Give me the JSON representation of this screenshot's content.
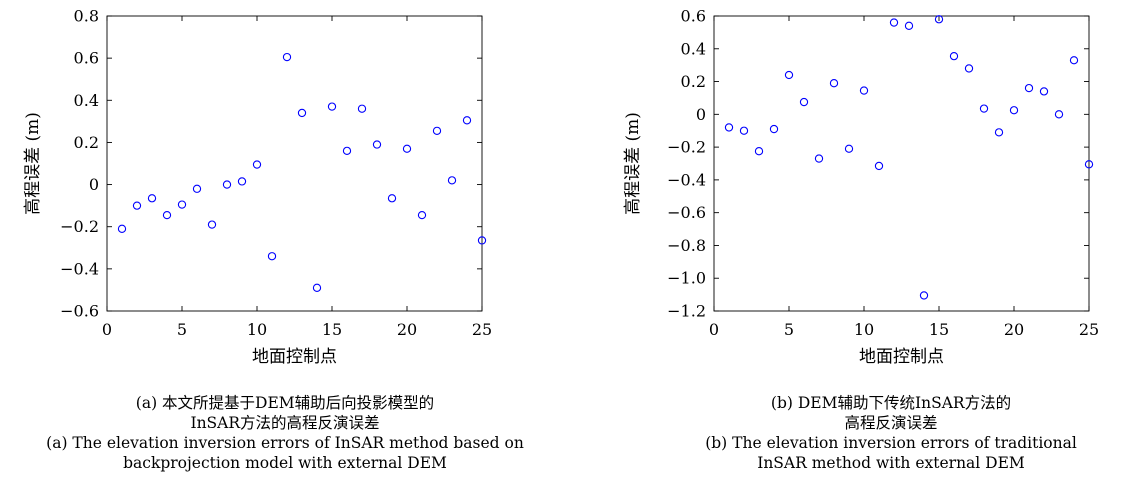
{
  "chart_data": [
    {
      "type": "scatter",
      "ylabel": "高程误差 (m)",
      "xlabel": "地面控制点",
      "xlim": [
        0,
        25
      ],
      "ylim": [
        -0.6,
        0.8
      ],
      "xticks": [
        "0",
        "5",
        "10",
        "15",
        "20",
        "25"
      ],
      "yticks": [
        "−0.6",
        "−0.4",
        "−0.2",
        "0",
        "0.2",
        "0.4",
        "0.6",
        "0.8"
      ],
      "marker": "circle",
      "marker_color": "#0000ff",
      "grid": false,
      "x": [
        1,
        2,
        3,
        4,
        5,
        6,
        7,
        8,
        9,
        10,
        11,
        12,
        13,
        14,
        15,
        16,
        17,
        18,
        19,
        20,
        21,
        22,
        23,
        24,
        25
      ],
      "y": [
        -0.21,
        -0.1,
        -0.065,
        -0.145,
        -0.095,
        -0.02,
        -0.19,
        0.0,
        0.015,
        0.095,
        -0.34,
        0.605,
        0.34,
        -0.49,
        0.37,
        0.16,
        0.36,
        0.19,
        -0.065,
        0.17,
        -0.145,
        0.255,
        0.02,
        0.305,
        -0.265
      ],
      "caption_lines": [
        "(a) 本文所提基于DEM辅助后向投影模型的",
        "InSAR方法的高程反演误差",
        "(a) The elevation inversion errors of InSAR method based on",
        "backprojection model with external DEM"
      ]
    },
    {
      "type": "scatter",
      "ylabel": "高程误差 (m)",
      "xlabel": "地面控制点",
      "xlim": [
        0,
        25
      ],
      "ylim": [
        -1.2,
        0.6
      ],
      "xticks": [
        "0",
        "5",
        "10",
        "15",
        "20",
        "25"
      ],
      "yticks": [
        "−1.2",
        "−1.0",
        "−0.8",
        "−0.6",
        "−0.4",
        "−0.2",
        "0",
        "0.2",
        "0.4",
        "0.6"
      ],
      "marker": "circle",
      "marker_color": "#0000ff",
      "grid": false,
      "x": [
        1,
        2,
        3,
        4,
        5,
        6,
        7,
        8,
        9,
        10,
        11,
        12,
        13,
        14,
        15,
        16,
        17,
        18,
        19,
        20,
        21,
        22,
        23,
        24,
        25
      ],
      "y": [
        -0.08,
        -0.1,
        -0.225,
        -0.09,
        0.24,
        0.075,
        -0.27,
        0.19,
        -0.21,
        0.145,
        -0.315,
        0.56,
        0.54,
        -1.105,
        0.58,
        0.355,
        0.28,
        0.035,
        -0.11,
        0.025,
        0.16,
        0.14,
        0.0,
        0.33,
        -0.305
      ],
      "caption_lines": [
        "(b) DEM辅助下传统InSAR方法的",
        "高程反演误差",
        "(b) The elevation inversion errors of traditional",
        "InSAR method with external DEM"
      ]
    }
  ]
}
